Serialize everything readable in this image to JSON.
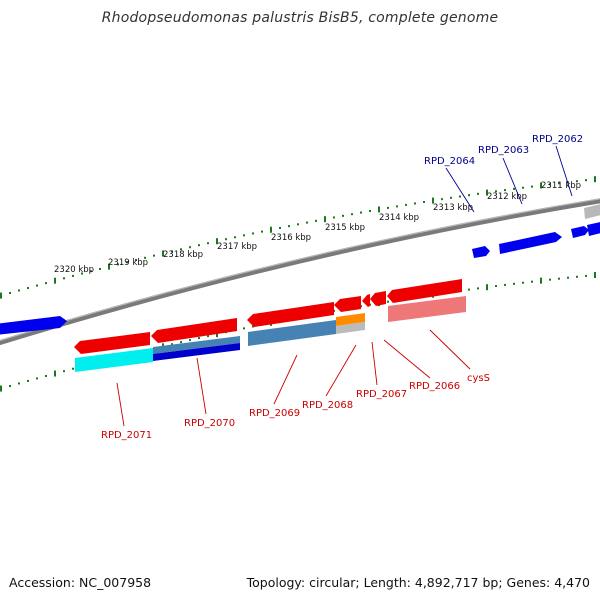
{
  "title": "Rhodopseudomonas palustris BisB5, complete genome",
  "footer": {
    "accession": "Accession: NC_007958",
    "summary": "Topology: circular; Length: 4,892,717 bp; Genes: 4,470"
  },
  "colors": {
    "backbone": "#808080",
    "tick": "#1a7a1a",
    "forward_label": "#00008b",
    "reverse_label": "#cc0000"
  },
  "scale": {
    "unit": "kbp",
    "ticks": [
      {
        "label": "2311 kbp"
      },
      {
        "label": "2312 kbp"
      },
      {
        "label": "2313 kbp"
      },
      {
        "label": "2314 kbp"
      },
      {
        "label": "2315 kbp"
      },
      {
        "label": "2316 kbp"
      },
      {
        "label": "2317 kbp"
      },
      {
        "label": "2318 kbp"
      },
      {
        "label": "2319 kbp"
      },
      {
        "label": "2320 kbp"
      }
    ]
  },
  "genes": [
    {
      "label": "RPD_2062",
      "strand": "forward"
    },
    {
      "label": "RPD_2063",
      "strand": "forward"
    },
    {
      "label": "RPD_2064",
      "strand": "forward"
    },
    {
      "label": "cysS",
      "strand": "reverse"
    },
    {
      "label": "RPD_2066",
      "strand": "reverse"
    },
    {
      "label": "RPD_2067",
      "strand": "reverse"
    },
    {
      "label": "RPD_2068",
      "strand": "reverse"
    },
    {
      "label": "RPD_2069",
      "strand": "reverse"
    },
    {
      "label": "RPD_2070",
      "strand": "reverse"
    },
    {
      "label": "RPD_2071",
      "strand": "reverse"
    }
  ]
}
